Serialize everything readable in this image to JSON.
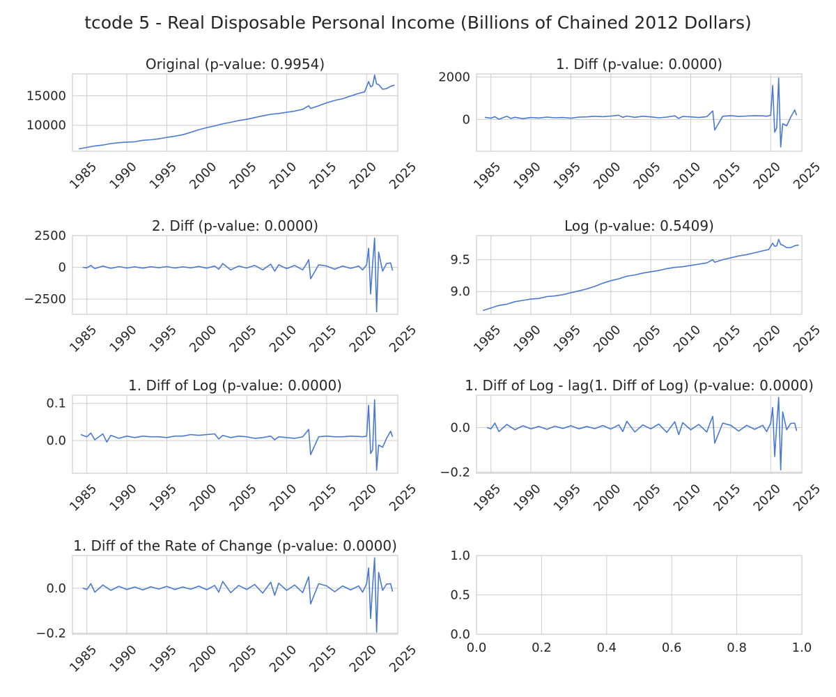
{
  "figure": {
    "title": "tcode 5 - Real Disposable Personal Income (Billions of Chained 2012 Dollars)",
    "line_color": "#4878cf",
    "grid_color": "#cccccc"
  },
  "chart_data": [
    {
      "type": "line",
      "title": "Original (p-value: 0.9954)",
      "xlim": [
        1983.2,
        2023.9
      ],
      "ylim": [
        5600,
        18700
      ],
      "x_ticks": [
        1985,
        1990,
        1995,
        2000,
        2005,
        2010,
        2015,
        2020,
        2025
      ],
      "x_tick_labels": [
        "1985",
        "1990",
        "1995",
        "2000",
        "2005",
        "2010",
        "2015",
        "2020",
        "2025"
      ],
      "y_ticks": [
        10000,
        15000
      ],
      "y_tick_labels": [
        "10000",
        "15000"
      ],
      "grid": true,
      "series": [
        {
          "x": [
            1984.0,
            1985.0,
            1986.0,
            1987.0,
            1988.0,
            1989.0,
            1990.0,
            1991.0,
            1992.0,
            1993.0,
            1994.0,
            1995.0,
            1996.0,
            1997.0,
            1998.0,
            1999.0,
            2000.0,
            2001.0,
            2002.0,
            2003.0,
            2004.0,
            2005.0,
            2006.0,
            2007.0,
            2008.0,
            2009.0,
            2010.0,
            2011.0,
            2012.0,
            2012.75,
            2013.0,
            2014.0,
            2015.0,
            2016.0,
            2017.0,
            2018.0,
            2019.0,
            2019.75,
            2020.25,
            2020.5,
            2020.75,
            2021.0,
            2021.25,
            2021.5,
            2022.0,
            2022.5,
            2023.0,
            2023.5
          ],
          "y": [
            6000,
            6250,
            6500,
            6650,
            6900,
            7050,
            7150,
            7200,
            7450,
            7550,
            7700,
            7950,
            8150,
            8400,
            8800,
            9250,
            9600,
            9900,
            10250,
            10500,
            10800,
            11000,
            11300,
            11600,
            11850,
            12000,
            12200,
            12400,
            12700,
            13300,
            12850,
            13300,
            13800,
            14200,
            14500,
            14950,
            15400,
            15650,
            17400,
            16500,
            16700,
            18500,
            17000,
            16900,
            16100,
            16200,
            16600,
            16800
          ]
        }
      ]
    },
    {
      "type": "line",
      "title": "1. Diff (p-value: 0.0000)",
      "xlim": [
        1983.2,
        2023.9
      ],
      "ylim": [
        -1500,
        2150
      ],
      "x_ticks": [
        1985,
        1990,
        1995,
        2000,
        2005,
        2010,
        2015,
        2020,
        2025
      ],
      "x_tick_labels": [
        "1985",
        "1990",
        "1995",
        "2000",
        "2005",
        "2010",
        "2015",
        "2020",
        "2025"
      ],
      "y_ticks": [
        0,
        2000
      ],
      "y_tick_labels": [
        "0",
        "2000"
      ],
      "grid": true,
      "series": [
        {
          "x": [
            1984.25,
            1985.0,
            1985.5,
            1986.0,
            1987.0,
            1987.5,
            1988.0,
            1989.0,
            1990.0,
            1991.0,
            1992.0,
            1993.0,
            1994.0,
            1995.0,
            1996.0,
            1997.0,
            1998.0,
            1999.0,
            2000.0,
            2001.0,
            2001.5,
            2002.0,
            2003.0,
            2004.0,
            2005.0,
            2006.0,
            2007.0,
            2008.0,
            2008.5,
            2009.0,
            2010.0,
            2011.0,
            2012.0,
            2012.75,
            2013.0,
            2014.0,
            2015.0,
            2016.0,
            2017.0,
            2018.0,
            2019.0,
            2019.5,
            2020.0,
            2020.25,
            2020.5,
            2020.75,
            2021.0,
            2021.25,
            2021.5,
            2022.0,
            2022.5,
            2023.0,
            2023.25
          ],
          "y": [
            100,
            60,
            130,
            10,
            150,
            50,
            100,
            40,
            90,
            70,
            110,
            80,
            90,
            60,
            110,
            120,
            150,
            130,
            160,
            200,
            100,
            160,
            100,
            150,
            120,
            80,
            110,
            170,
            50,
            140,
            120,
            90,
            130,
            400,
            -500,
            150,
            180,
            140,
            160,
            180,
            170,
            150,
            200,
            1600,
            -600,
            -400,
            1950,
            -1300,
            -200,
            -300,
            100,
            450,
            200
          ]
        }
      ]
    },
    {
      "type": "line",
      "title": "2. Diff (p-value: 0.0000)",
      "xlim": [
        1983.2,
        2023.9
      ],
      "ylim": [
        -3700,
        2500
      ],
      "x_ticks": [
        1985,
        1990,
        1995,
        2000,
        2005,
        2010,
        2015,
        2020,
        2025
      ],
      "x_tick_labels": [
        "1985",
        "1990",
        "1995",
        "2000",
        "2005",
        "2010",
        "2015",
        "2020",
        "2025"
      ],
      "y_ticks": [
        -2500,
        0,
        2500
      ],
      "y_tick_labels": [
        "−2500",
        "0",
        "2500"
      ],
      "grid": true,
      "series": [
        {
          "x": [
            1984.5,
            1985.0,
            1985.5,
            1986.0,
            1987.0,
            1988.0,
            1989.0,
            1990.0,
            1991.0,
            1992.0,
            1993.0,
            1994.0,
            1995.0,
            1996.0,
            1997.0,
            1998.0,
            1999.0,
            2000.0,
            2001.0,
            2001.5,
            2002.0,
            2003.0,
            2004.0,
            2005.0,
            2006.0,
            2007.0,
            2008.0,
            2008.5,
            2009.0,
            2010.0,
            2011.0,
            2012.0,
            2012.5,
            2012.75,
            2013.0,
            2014.0,
            2015.0,
            2016.0,
            2017.0,
            2018.0,
            2019.0,
            2019.5,
            2020.0,
            2020.25,
            2020.5,
            2020.75,
            2021.0,
            2021.25,
            2021.5,
            2022.0,
            2022.5,
            2023.0,
            2023.25
          ],
          "y": [
            0,
            -40,
            150,
            -100,
            100,
            -80,
            60,
            -50,
            40,
            -60,
            50,
            -30,
            60,
            -50,
            40,
            -40,
            70,
            -60,
            100,
            -150,
            300,
            -200,
            100,
            -50,
            150,
            -200,
            250,
            -300,
            200,
            -100,
            150,
            -200,
            300,
            600,
            -900,
            200,
            100,
            -150,
            100,
            -80,
            100,
            -200,
            200,
            1500,
            -2100,
            300,
            2300,
            -3500,
            1200,
            -300,
            300,
            350,
            -250
          ]
        }
      ]
    },
    {
      "type": "line",
      "title": "Log (p-value: 0.5409)",
      "xlim": [
        1983.2,
        2023.9
      ],
      "ylim": [
        8.64,
        9.88
      ],
      "x_ticks": [
        1985,
        1990,
        1995,
        2000,
        2005,
        2010,
        2015,
        2020,
        2025
      ],
      "x_tick_labels": [
        "1985",
        "1990",
        "1995",
        "2000",
        "2005",
        "2010",
        "2015",
        "2020",
        "2025"
      ],
      "y_ticks": [
        9.0,
        9.5
      ],
      "y_tick_labels": [
        "9.0",
        "9.5"
      ],
      "grid": true,
      "series": [
        {
          "x": [
            1984.0,
            1985.0,
            1986.0,
            1987.0,
            1988.0,
            1989.0,
            1990.0,
            1991.0,
            1992.0,
            1993.0,
            1994.0,
            1995.0,
            1996.0,
            1997.0,
            1998.0,
            1999.0,
            2000.0,
            2001.0,
            2002.0,
            2003.0,
            2004.0,
            2005.0,
            2006.0,
            2007.0,
            2008.0,
            2009.0,
            2010.0,
            2011.0,
            2012.0,
            2012.75,
            2013.0,
            2014.0,
            2015.0,
            2016.0,
            2017.0,
            2018.0,
            2019.0,
            2019.75,
            2020.25,
            2020.5,
            2020.75,
            2021.0,
            2021.25,
            2021.5,
            2022.0,
            2022.5,
            2023.0,
            2023.5
          ],
          "y": [
            8.7,
            8.74,
            8.78,
            8.8,
            8.84,
            8.86,
            8.88,
            8.89,
            8.92,
            8.93,
            8.95,
            8.98,
            9.01,
            9.04,
            9.08,
            9.13,
            9.17,
            9.2,
            9.24,
            9.26,
            9.29,
            9.31,
            9.33,
            9.36,
            9.38,
            9.39,
            9.41,
            9.43,
            9.45,
            9.5,
            9.46,
            9.5,
            9.53,
            9.56,
            9.58,
            9.61,
            9.64,
            9.66,
            9.76,
            9.71,
            9.72,
            9.82,
            9.74,
            9.73,
            9.69,
            9.69,
            9.72,
            9.73
          ]
        }
      ]
    },
    {
      "type": "line",
      "title": "1. Diff of Log (p-value: 0.0000)",
      "xlim": [
        1983.2,
        2023.9
      ],
      "ylim": [
        -0.088,
        0.122
      ],
      "x_ticks": [
        1985,
        1990,
        1995,
        2000,
        2005,
        2010,
        2015,
        2020,
        2025
      ],
      "x_tick_labels": [
        "1985",
        "1990",
        "1995",
        "2000",
        "2005",
        "2010",
        "2015",
        "2020",
        "2025"
      ],
      "y_ticks": [
        0.0,
        0.1
      ],
      "y_tick_labels": [
        "0.0",
        "0.1"
      ],
      "grid": true,
      "series": [
        {
          "x": [
            1984.25,
            1985.0,
            1985.5,
            1986.0,
            1987.0,
            1987.5,
            1988.0,
            1989.0,
            1990.0,
            1991.0,
            1992.0,
            1993.0,
            1994.0,
            1995.0,
            1996.0,
            1997.0,
            1998.0,
            1999.0,
            2000.0,
            2001.0,
            2001.5,
            2002.0,
            2003.0,
            2004.0,
            2005.0,
            2006.0,
            2007.0,
            2008.0,
            2008.5,
            2009.0,
            2010.0,
            2011.0,
            2012.0,
            2012.75,
            2013.0,
            2014.0,
            2015.0,
            2016.0,
            2017.0,
            2018.0,
            2019.0,
            2019.5,
            2020.0,
            2020.25,
            2020.5,
            2020.75,
            2021.0,
            2021.25,
            2021.5,
            2022.0,
            2022.5,
            2023.0,
            2023.25
          ],
          "y": [
            0.016,
            0.01,
            0.02,
            0.002,
            0.018,
            -0.004,
            0.014,
            0.006,
            0.012,
            0.008,
            0.012,
            0.01,
            0.01,
            0.008,
            0.012,
            0.012,
            0.016,
            0.014,
            0.016,
            0.018,
            0.004,
            0.014,
            0.008,
            0.012,
            0.01,
            0.006,
            0.008,
            0.012,
            0.002,
            0.01,
            0.008,
            0.006,
            0.01,
            0.03,
            -0.038,
            0.01,
            0.012,
            0.01,
            0.01,
            0.012,
            0.011,
            0.01,
            0.012,
            0.095,
            -0.035,
            -0.025,
            0.11,
            -0.08,
            -0.012,
            -0.018,
            0.006,
            0.025,
            0.01
          ]
        }
      ]
    },
    {
      "type": "line",
      "title": "1. Diff of Log - lag(1. Diff of Log) (p-value: 0.0000)",
      "xlim": [
        1983.2,
        2023.9
      ],
      "ylim": [
        -0.205,
        0.145
      ],
      "x_ticks": [
        1985,
        1990,
        1995,
        2000,
        2005,
        2010,
        2015,
        2020,
        2025
      ],
      "x_tick_labels": [
        "1985",
        "1990",
        "1995",
        "2000",
        "2005",
        "2010",
        "2015",
        "2020",
        "2025"
      ],
      "y_ticks": [
        -0.2,
        0.0
      ],
      "y_tick_labels": [
        "−0.2",
        "0.0"
      ],
      "grid": true,
      "series": [
        {
          "x": [
            1984.5,
            1985.0,
            1985.5,
            1986.0,
            1987.0,
            1988.0,
            1989.0,
            1990.0,
            1991.0,
            1992.0,
            1993.0,
            1994.0,
            1995.0,
            1996.0,
            1997.0,
            1998.0,
            1999.0,
            2000.0,
            2001.0,
            2001.5,
            2002.0,
            2003.0,
            2004.0,
            2005.0,
            2006.0,
            2007.0,
            2008.0,
            2008.5,
            2009.0,
            2010.0,
            2011.0,
            2012.0,
            2012.5,
            2012.75,
            2013.0,
            2014.0,
            2015.0,
            2016.0,
            2017.0,
            2018.0,
            2019.0,
            2019.5,
            2020.0,
            2020.25,
            2020.5,
            2020.75,
            2021.0,
            2021.25,
            2021.5,
            2022.0,
            2022.5,
            2023.0,
            2023.25
          ],
          "y": [
            0.0,
            -0.006,
            0.02,
            -0.018,
            0.014,
            -0.01,
            0.008,
            -0.006,
            0.005,
            -0.008,
            0.006,
            -0.004,
            0.008,
            -0.006,
            0.005,
            -0.005,
            0.009,
            -0.007,
            0.012,
            -0.018,
            0.028,
            -0.02,
            0.012,
            -0.006,
            0.016,
            -0.022,
            0.026,
            -0.032,
            0.022,
            -0.01,
            0.014,
            -0.02,
            0.028,
            0.05,
            -0.07,
            0.02,
            0.01,
            -0.016,
            0.01,
            -0.008,
            0.01,
            -0.018,
            0.02,
            0.09,
            -0.13,
            0.01,
            0.135,
            -0.19,
            0.07,
            -0.01,
            0.018,
            0.02,
            -0.015
          ]
        }
      ]
    },
    {
      "type": "line",
      "title": "1. Diff of the Rate of Change (p-value: 0.0000)",
      "xlim": [
        1983.2,
        2023.9
      ],
      "ylim": [
        -0.205,
        0.145
      ],
      "x_ticks": [
        1985,
        1990,
        1995,
        2000,
        2005,
        2010,
        2015,
        2020,
        2025
      ],
      "x_tick_labels": [
        "1985",
        "1990",
        "1995",
        "2000",
        "2005",
        "2010",
        "2015",
        "2020",
        "2025"
      ],
      "y_ticks": [
        -0.2,
        0.0
      ],
      "y_tick_labels": [
        "−0.2",
        "0.0"
      ],
      "grid": true,
      "series": [
        {
          "x": [
            1984.5,
            1985.0,
            1985.5,
            1986.0,
            1987.0,
            1988.0,
            1989.0,
            1990.0,
            1991.0,
            1992.0,
            1993.0,
            1994.0,
            1995.0,
            1996.0,
            1997.0,
            1998.0,
            1999.0,
            2000.0,
            2001.0,
            2001.5,
            2002.0,
            2003.0,
            2004.0,
            2005.0,
            2006.0,
            2007.0,
            2008.0,
            2008.5,
            2009.0,
            2010.0,
            2011.0,
            2012.0,
            2012.5,
            2012.75,
            2013.0,
            2014.0,
            2015.0,
            2016.0,
            2017.0,
            2018.0,
            2019.0,
            2019.5,
            2020.0,
            2020.25,
            2020.5,
            2020.75,
            2021.0,
            2021.25,
            2021.5,
            2022.0,
            2022.5,
            2023.0,
            2023.25
          ],
          "y": [
            0.0,
            -0.006,
            0.02,
            -0.018,
            0.014,
            -0.01,
            0.008,
            -0.006,
            0.005,
            -0.008,
            0.006,
            -0.004,
            0.008,
            -0.006,
            0.005,
            -0.005,
            0.009,
            -0.007,
            0.012,
            -0.018,
            0.03,
            -0.02,
            0.012,
            -0.006,
            0.016,
            -0.022,
            0.026,
            -0.032,
            0.022,
            -0.01,
            0.014,
            -0.02,
            0.028,
            0.05,
            -0.07,
            0.02,
            0.01,
            -0.016,
            0.01,
            -0.008,
            0.01,
            -0.018,
            0.02,
            0.09,
            -0.135,
            0.01,
            0.135,
            -0.195,
            0.07,
            -0.01,
            0.018,
            0.02,
            -0.015
          ]
        }
      ]
    },
    {
      "type": "line",
      "title": "",
      "xlim": [
        0.0,
        1.0
      ],
      "ylim": [
        0.0,
        1.0
      ],
      "x_ticks": [
        0.0,
        0.2,
        0.4,
        0.6,
        0.8,
        1.0
      ],
      "x_tick_labels": [
        "0.0",
        "0.2",
        "0.4",
        "0.6",
        "0.8",
        "1.0"
      ],
      "y_ticks": [
        0.0,
        0.5,
        1.0
      ],
      "y_tick_labels": [
        "0.0",
        "0.5",
        "1.0"
      ],
      "grid": true,
      "series": []
    }
  ]
}
